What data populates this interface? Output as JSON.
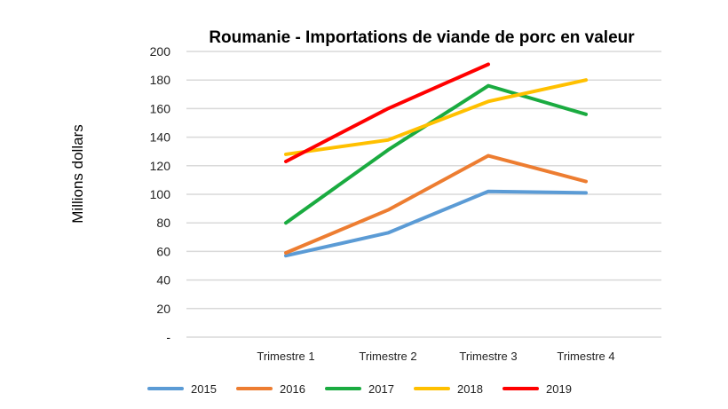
{
  "chart_data": {
    "type": "line",
    "title": "Roumanie - Importations de viande de porc en valeur",
    "xlabel": "",
    "ylabel": "Millions dollars",
    "categories": [
      "Trimestre 1",
      "Trimestre 2",
      "Trimestre 3",
      "Trimestre 4"
    ],
    "yticks": [
      "-",
      "20",
      "40",
      "60",
      "80",
      "100",
      "120",
      "140",
      "160",
      "180",
      "200"
    ],
    "ylim": [
      0,
      200
    ],
    "grid": true,
    "legend": "bottom",
    "series": [
      {
        "name": "2015",
        "color": "#5b9bd5",
        "values": [
          57,
          73,
          102,
          101
        ]
      },
      {
        "name": "2016",
        "color": "#ed7d31",
        "values": [
          59,
          89,
          127,
          109
        ]
      },
      {
        "name": "2017",
        "color": "#1aab40",
        "values": [
          80,
          131,
          176,
          156
        ]
      },
      {
        "name": "2018",
        "color": "#ffc000",
        "values": [
          128,
          138,
          165,
          180
        ]
      },
      {
        "name": "2019",
        "color": "#ff0000",
        "values": [
          123,
          160,
          191,
          null
        ]
      }
    ]
  }
}
